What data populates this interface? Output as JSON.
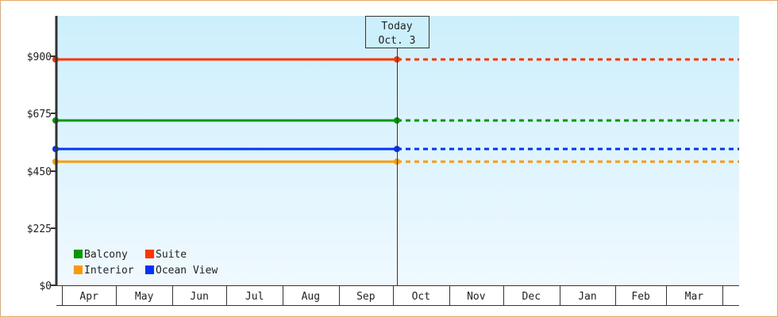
{
  "chart_data": {
    "type": "line",
    "title": "",
    "xlabel": "",
    "ylabel": "",
    "ylim": [
      0,
      1060
    ],
    "y_ticks": [
      "$0",
      "$225",
      "$450",
      "$675",
      "$900"
    ],
    "y_tick_values": [
      0,
      225,
      450,
      675,
      900
    ],
    "categories": [
      "Apr",
      "May",
      "Jun",
      "Jul",
      "Aug",
      "Sep",
      "Oct",
      "Nov",
      "Dec",
      "Jan",
      "Feb",
      "Mar"
    ],
    "grid": false,
    "legend_position": "bottom-left",
    "today_marker": {
      "line1": "Today",
      "line2": "Oct. 3",
      "month": "Oct",
      "day": 3
    },
    "series": [
      {
        "name": "Balcony",
        "color": "#009900",
        "value": 650
      },
      {
        "name": "Suite",
        "color": "#ff3300",
        "value": 888
      },
      {
        "name": "Interior",
        "color": "#ff9900",
        "value": 485
      },
      {
        "name": "Ocean View",
        "color": "#0033ff",
        "value": 535
      }
    ],
    "note_styles": {
      "past": "solid",
      "future": "dotted"
    }
  }
}
